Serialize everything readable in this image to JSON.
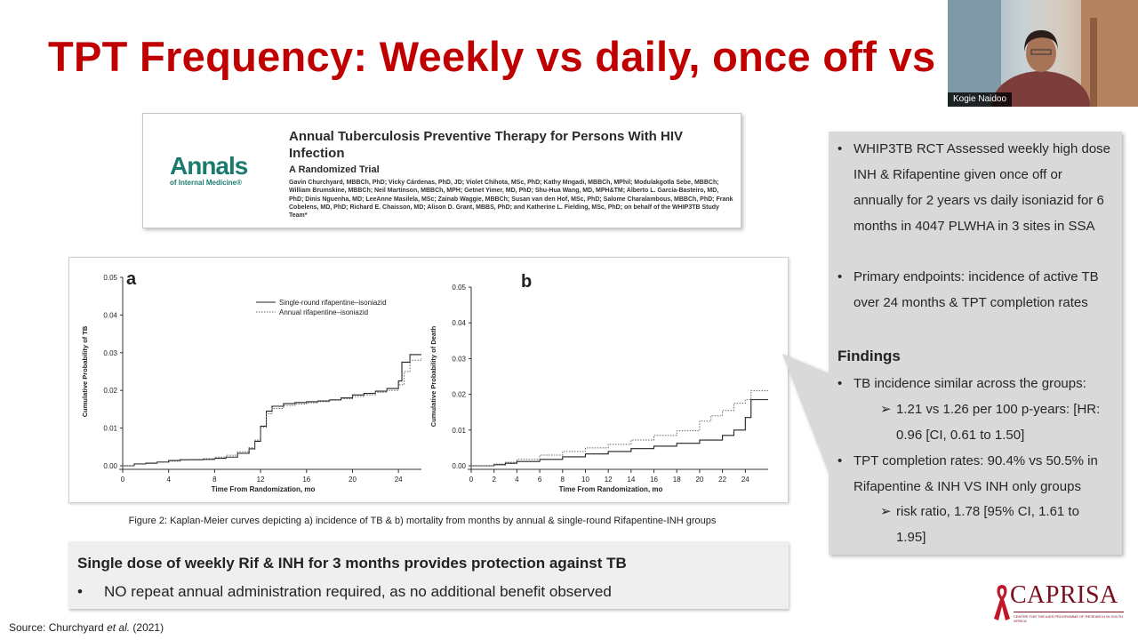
{
  "slide": {
    "title": "TPT Frequency: Weekly vs daily, once off vs"
  },
  "webcam": {
    "participant_name": "Kogie Naidoo"
  },
  "paper": {
    "journal_logo_main": "Annals",
    "journal_logo_sub": "of Internal Medicine®",
    "title": "Annual Tuberculosis Preventive Therapy for Persons With HIV Infection",
    "subtitle": "A Randomized Trial",
    "authors": "Gavin Churchyard, MBBCh, PhD; Vicky Cárdenas, PhD, JD; Violet Chihota, MSc, PhD; Kathy Mngadi, MBBCh, MPhil; Modulakgotla Sebe, MBBCh; William Brumskine, MBBCh; Neil Martinson, MBBCh, MPH; Getnet Yimer, MD, PhD; Shu-Hua Wang, MD, MPH&TM; Alberto L. García-Basteiro, MD, PhD; Dinis Nguenha, MD; LeeAnne Masilela, MSc; Zainab Waggie, MBBCh; Susan van den Hof, MSc, PhD; Salome Charalambous, MBBCh, PhD; Frank Cobelens, MD, PhD; Richard E. Chaisson, MD; Alison D. Grant, MBBS, PhD; and Katherine L. Fielding, MSc, PhD; on behalf of the WHIP3TB Study Team*"
  },
  "figure": {
    "caption": "Figure 2: Kaplan-Meier curves depicting a) incidence of TB & b) mortality from months by annual & single-round Rifapentine-INH groups"
  },
  "chart_data": [
    {
      "type": "line",
      "panel_label": "a",
      "xlabel": "Time From Randomization, mo",
      "ylabel": "Cumulative Probability of TB",
      "xlim": [
        0,
        26
      ],
      "ylim": [
        0,
        0.05
      ],
      "x_ticks": [
        "0",
        "4",
        "8",
        "12",
        "16",
        "20",
        "24"
      ],
      "y_ticks": [
        "0.00",
        "0.01",
        "0.02",
        "0.03",
        "0.04",
        "0.05"
      ],
      "legend_position": "top-right",
      "series": [
        {
          "name": "Single-round rifapentine–isoniazid",
          "style": "solid",
          "x": [
            0,
            1,
            2,
            3,
            4,
            5,
            6,
            7,
            8,
            9,
            10,
            11,
            11.5,
            12,
            12.5,
            13,
            14,
            15,
            16,
            17,
            18,
            19,
            20,
            21,
            22,
            23,
            24,
            24.3,
            25,
            26
          ],
          "values": [
            0,
            0.0005,
            0.0007,
            0.001,
            0.0014,
            0.0016,
            0.0016,
            0.0017,
            0.002,
            0.0023,
            0.0033,
            0.0045,
            0.0065,
            0.0105,
            0.0145,
            0.0158,
            0.0165,
            0.0168,
            0.017,
            0.0172,
            0.0175,
            0.018,
            0.0188,
            0.0192,
            0.0198,
            0.0205,
            0.0225,
            0.0275,
            0.0295,
            0.0295
          ]
        },
        {
          "name": "Annual rifapentine–isoniazid",
          "style": "dotted",
          "x": [
            0,
            1,
            2,
            3,
            4,
            5,
            6,
            7,
            8,
            9,
            10,
            11,
            11.5,
            12,
            12.5,
            13,
            14,
            15,
            16,
            17,
            18,
            19,
            20,
            21,
            22,
            23,
            24,
            24.5,
            25,
            26
          ],
          "values": [
            0,
            0.0004,
            0.0006,
            0.0009,
            0.0012,
            0.0015,
            0.0017,
            0.0019,
            0.0023,
            0.0028,
            0.0037,
            0.0048,
            0.0068,
            0.0102,
            0.0138,
            0.0152,
            0.016,
            0.0164,
            0.0167,
            0.017,
            0.0174,
            0.0178,
            0.0184,
            0.0188,
            0.0195,
            0.02,
            0.0215,
            0.025,
            0.028,
            0.0285
          ]
        }
      ]
    },
    {
      "type": "line",
      "panel_label": "b",
      "xlabel": "Time From Randomization, mo",
      "ylabel": "Cumulative Probability of Death",
      "xlim": [
        0,
        26
      ],
      "ylim": [
        0,
        0.05
      ],
      "x_ticks": [
        "0",
        "2",
        "4",
        "6",
        "8",
        "10",
        "12",
        "14",
        "16",
        "18",
        "20",
        "22",
        "24"
      ],
      "y_ticks": [
        "0.00",
        "0.01",
        "0.02",
        "0.03",
        "0.04",
        "0.05"
      ],
      "series": [
        {
          "name": "Single-round rifapentine–isoniazid",
          "style": "solid",
          "x": [
            0,
            2,
            3,
            4,
            6,
            8,
            10,
            12,
            14,
            16,
            18,
            20,
            22,
            23,
            24,
            24.5,
            25,
            26
          ],
          "values": [
            0,
            0.0003,
            0.0007,
            0.0012,
            0.0018,
            0.0025,
            0.0033,
            0.004,
            0.0048,
            0.0055,
            0.0063,
            0.0072,
            0.0085,
            0.01,
            0.0135,
            0.0185,
            0.0185,
            0.0185
          ]
        },
        {
          "name": "Annual rifapentine–isoniazid",
          "style": "dotted",
          "x": [
            0,
            2,
            3,
            4,
            6,
            8,
            10,
            12,
            14,
            16,
            18,
            20,
            21,
            22,
            23,
            24,
            24.5,
            25,
            26
          ],
          "values": [
            0,
            0.0005,
            0.001,
            0.0018,
            0.003,
            0.004,
            0.005,
            0.006,
            0.0072,
            0.0085,
            0.0098,
            0.0125,
            0.014,
            0.0155,
            0.0175,
            0.0185,
            0.021,
            0.021,
            0.021
          ]
        }
      ]
    }
  ],
  "callout": {
    "bullet_char": "•",
    "sub_bullet_char": "➢",
    "items": [
      "WHIP3TB RCT Assessed weekly high dose INH & Rifapentine given once off or annually for 2 years vs daily isoniazid for 6 months in 4047 PLWHA in 3 sites in SSA",
      "Primary endpoints: incidence of active TB over 24 months & TPT completion rates"
    ],
    "findings_heading": "Findings",
    "finding_1": "TB incidence similar across the groups:",
    "finding_1_sub": "1.21 vs 1.26 per 100 p-years: [HR: 0.96 [CI, 0.61 to 1.50]",
    "finding_2": "TPT completion rates: 90.4% vs 50.5% in Rifapentine & INH VS INH only groups",
    "finding_2_sub": "risk ratio, 1.78 [95% CI, 1.61 to 1.95]"
  },
  "key_message": {
    "heading": "Single dose of weekly Rif & INH for 3 months provides protection against TB",
    "bullet_char": "•",
    "bullet": "NO repeat annual administration required, as no additional benefit observed"
  },
  "source": {
    "prefix": "Source: Churchyard ",
    "etal": "et al.",
    "suffix": " (2021)"
  },
  "logo": {
    "name": "CAPRISA",
    "tagline": "CENTRE FOR THE AIDS PROGRAMME OF RESEARCH IN SOUTH AFRICA"
  },
  "colors": {
    "title_red": "#c00000",
    "callout_grey": "#d9d9d9",
    "logo_maroon": "#7a0e1e",
    "journal_teal": "#1b7a6e"
  }
}
